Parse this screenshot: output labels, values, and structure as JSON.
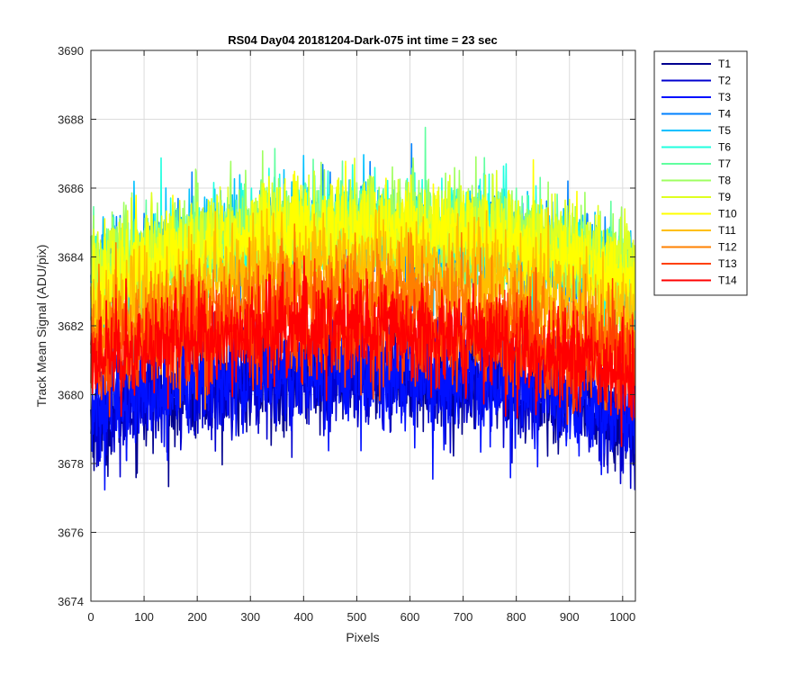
{
  "chart_data": {
    "type": "line",
    "title": "RS04 Day04 20181204-Dark-075 int time = 23 sec",
    "xlabel": "Pixels",
    "ylabel": "Track Mean Signal (ADU/pix)",
    "xlim": [
      0,
      1024
    ],
    "ylim": [
      3674,
      3690
    ],
    "x_ticks": [
      0,
      100,
      200,
      300,
      400,
      500,
      600,
      700,
      800,
      900,
      1000
    ],
    "y_ticks": [
      3674,
      3676,
      3678,
      3680,
      3682,
      3684,
      3686,
      3688,
      3690
    ],
    "grid": true,
    "legend_position": "outside-right-top",
    "x_points": 1024,
    "series": [
      {
        "name": "T1",
        "color": "#00008f",
        "baseline_start": 3679.4,
        "baseline_mid": 3680.6,
        "baseline_end": 3679.2,
        "noise": 0.85
      },
      {
        "name": "T2",
        "color": "#0000cf",
        "baseline_start": 3679.4,
        "baseline_mid": 3680.6,
        "baseline_end": 3679.2,
        "noise": 0.85
      },
      {
        "name": "T3",
        "color": "#0010ff",
        "baseline_start": 3679.5,
        "baseline_mid": 3680.7,
        "baseline_end": 3679.3,
        "noise": 0.85
      },
      {
        "name": "T4",
        "color": "#0080ff",
        "baseline_start": 3683.2,
        "baseline_mid": 3684.6,
        "baseline_end": 3683.2,
        "noise": 0.8
      },
      {
        "name": "T5",
        "color": "#00c0ff",
        "baseline_start": 3683.3,
        "baseline_mid": 3684.8,
        "baseline_end": 3683.3,
        "noise": 0.8
      },
      {
        "name": "T6",
        "color": "#20ffdf",
        "baseline_start": 3683.4,
        "baseline_mid": 3684.9,
        "baseline_end": 3683.4,
        "noise": 0.8
      },
      {
        "name": "T7",
        "color": "#60ff9f",
        "baseline_start": 3683.4,
        "baseline_mid": 3684.9,
        "baseline_end": 3683.5,
        "noise": 0.8
      },
      {
        "name": "T8",
        "color": "#9fff60",
        "baseline_start": 3683.5,
        "baseline_mid": 3685.0,
        "baseline_end": 3683.6,
        "noise": 0.8
      },
      {
        "name": "T9",
        "color": "#dfff20",
        "baseline_start": 3683.3,
        "baseline_mid": 3684.9,
        "baseline_end": 3683.5,
        "noise": 0.8
      },
      {
        "name": "T10",
        "color": "#ffff00",
        "baseline_start": 3683.0,
        "baseline_mid": 3684.8,
        "baseline_end": 3683.1,
        "noise": 0.8
      },
      {
        "name": "T11",
        "color": "#ffbf00",
        "baseline_start": 3682.2,
        "baseline_mid": 3683.7,
        "baseline_end": 3682.2,
        "noise": 0.8
      },
      {
        "name": "T12",
        "color": "#ff8000",
        "baseline_start": 3681.6,
        "baseline_mid": 3682.9,
        "baseline_end": 3681.2,
        "noise": 0.85
      },
      {
        "name": "T13",
        "color": "#ff4000",
        "baseline_start": 3681.0,
        "baseline_mid": 3682.0,
        "baseline_end": 3680.6,
        "noise": 0.85
      },
      {
        "name": "T14",
        "color": "#ff0000",
        "baseline_start": 3680.9,
        "baseline_mid": 3681.9,
        "baseline_end": 3680.5,
        "noise": 0.8
      }
    ]
  }
}
